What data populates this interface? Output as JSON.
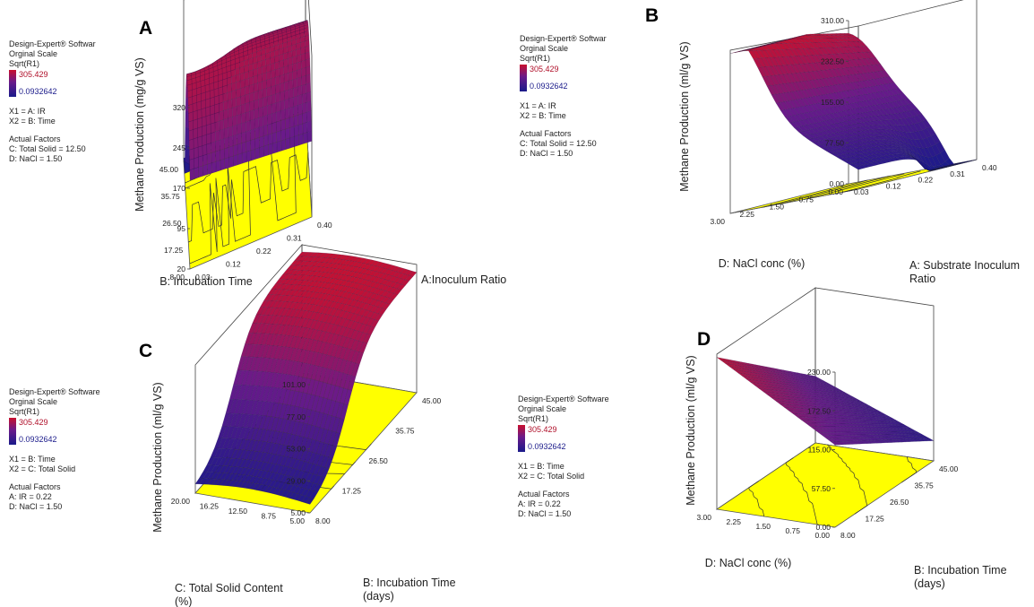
{
  "info_blocks": [
    {
      "software": "Design-Expert® Softwar",
      "scale": "Orginal Scale",
      "response": "Sqrt(R1)",
      "legend_high": "305.429",
      "legend_low": "0.0932642",
      "x1": "X1 = A: IR",
      "x2": "X2 = B: Time",
      "factors_title": "Actual Factors",
      "factor_1": "C: Total Solid = 12.50",
      "factor_2": "D: NaCl = 1.50"
    },
    {
      "software": "Design-Expert® Softwar",
      "scale": "Orginal Scale",
      "response": "Sqrt(R1)",
      "legend_high": "305.429",
      "legend_low": "0.0932642",
      "x1": "X1 = A: IR",
      "x2": "X2 = B: Time",
      "factors_title": "Actual Factors",
      "factor_1": "C: Total Solid = 12.50",
      "factor_2": "D: NaCl = 1.50"
    },
    {
      "software": "Design-Expert® Software",
      "scale": "Orginal Scale",
      "response": "Sqrt(R1)",
      "legend_high": "305.429",
      "legend_low": "0.0932642",
      "x1": "X1 = B: Time",
      "x2": "X2 = C: Total Solid",
      "factors_title": "Actual Factors",
      "factor_1": "A: IR = 0.22",
      "factor_2": "D: NaCl = 1.50"
    },
    {
      "software": "Design-Expert® Software",
      "scale": "Orginal Scale",
      "response": "Sqrt(R1)",
      "legend_high": "305.429",
      "legend_low": "0.0932642",
      "x1": "X1 = B: Time",
      "x2": "X2 = C: Total Solid",
      "factors_title": "Actual Factors",
      "factor_1": "A: IR = 0.22",
      "factor_2": "D: NaCl = 1.50"
    }
  ],
  "colors": {
    "surface_high": "#c8102e",
    "surface_mid": "#6a1a8a",
    "surface_low": "#1a1a8a",
    "contour_floor": "#ffff00"
  },
  "chart_data": [
    {
      "type": "surface",
      "panel": "A",
      "zlabel": "Methane Production (mg/g VS)",
      "z_ticks": [
        "20",
        "95",
        "170",
        "245",
        "320"
      ],
      "xlabel": "A:Inoculum Ratio",
      "x_ticks": [
        "0.03",
        "0.12",
        "0.22",
        "0.31",
        "0.40"
      ],
      "ylabel": "B: Incubation Time",
      "y_ticks": [
        "8.00",
        "17.25",
        "26.50",
        "35.75",
        "45.00"
      ],
      "surface": {
        "corners": {
          "x_lo_y_lo": 165,
          "x_hi_y_lo": 170,
          "x_lo_y_hi": 235,
          "x_hi_y_hi": 215
        },
        "peak": 300,
        "trough": 20
      }
    },
    {
      "type": "surface",
      "panel": "B",
      "zlabel": "Methane Production (ml/g VS)",
      "z_ticks": [
        "0.00",
        "77.50",
        "155.00",
        "232.50",
        "310.00"
      ],
      "xlabel": "A: Substrate Inoculum Ratio",
      "x_ticks": [
        "0.03",
        "0.12",
        "0.22",
        "0.31",
        "0.40"
      ],
      "ylabel": "D: NaCl conc (%)",
      "y_ticks": [
        "0.00",
        "0.75",
        "1.50",
        "2.25",
        "3.00"
      ],
      "surface": {
        "peak": 305,
        "trough": 0
      }
    },
    {
      "type": "surface",
      "panel": "C",
      "zlabel": "Methane Production (ml/g VS)",
      "z_ticks": [
        "5.00",
        "29.00",
        "53.00",
        "77.00",
        "101.00"
      ],
      "xlabel": "B: Incubation Time (days)",
      "x_ticks": [
        "8.00",
        "17.25",
        "26.50",
        "35.75",
        "45.00"
      ],
      "ylabel": "C: Total Solid Content (%)",
      "y_ticks": [
        "5.00",
        "8.75",
        "12.50",
        "16.25",
        "20.00"
      ],
      "surface": {
        "min": 5,
        "max": 101
      }
    },
    {
      "type": "surface",
      "panel": "D",
      "zlabel": "Methane Production (ml/g VS)",
      "z_ticks": [
        "0.00",
        "57.50",
        "115.00",
        "172.50",
        "230.00"
      ],
      "xlabel": "B: Incubation Time (days)",
      "x_ticks": [
        "8.00",
        "17.25",
        "26.50",
        "35.75",
        "45.00"
      ],
      "ylabel": "D: NaCl conc (%)",
      "y_ticks": [
        "0.00",
        "0.75",
        "1.50",
        "2.25",
        "3.00"
      ],
      "surface": {
        "min": 0,
        "max": 230
      }
    }
  ]
}
